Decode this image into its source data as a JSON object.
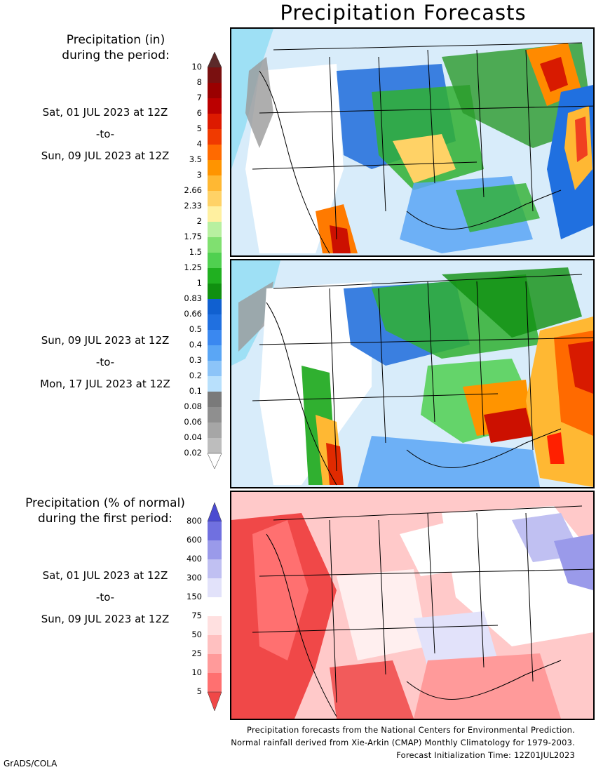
{
  "title": "Precipitation Forecasts",
  "precip_legend": {
    "heading_line1": "Precipitation (in)",
    "heading_line2": "during the period:",
    "levels": [
      "10",
      "8",
      "7",
      "6",
      "5",
      "4",
      "3.5",
      "3",
      "2.66",
      "2.33",
      "2",
      "1.75",
      "1.5",
      "1.25",
      "1",
      "0.83",
      "0.66",
      "0.5",
      "0.4",
      "0.3",
      "0.2",
      "0.1",
      "0.08",
      "0.06",
      "0.04",
      "0.02"
    ],
    "colors": [
      "#5c2a2a",
      "#7a1010",
      "#9a0000",
      "#bb0000",
      "#dd1a00",
      "#f03a00",
      "#ff6a00",
      "#ff9400",
      "#ffb833",
      "#ffd266",
      "#fff0a0",
      "#b8f0a0",
      "#80e070",
      "#50d050",
      "#20b020",
      "#109010",
      "#1060d0",
      "#2070e0",
      "#3a88f0",
      "#5aa6f5",
      "#8cc4f8",
      "#b8e0fc",
      "#7a7a7a",
      "#8f8f8f",
      "#a6a6a6",
      "#bdbdbd",
      "#ffffff"
    ]
  },
  "periods": [
    {
      "start": "Sat, 01 JUL 2023 at 12Z",
      "sep": "-to-",
      "end": "Sun, 09 JUL 2023 at 12Z"
    },
    {
      "start": "Sun, 09 JUL 2023 at 12Z",
      "sep": "-to-",
      "end": "Mon, 17 JUL 2023 at 12Z"
    }
  ],
  "percent_legend": {
    "heading_line1": "Precipitation (% of normal)",
    "heading_line2": "during the first period:",
    "levels": [
      "800",
      "600",
      "400",
      "300",
      "150",
      "75",
      "50",
      "25",
      "10",
      "5"
    ],
    "colors": [
      "#4a4ad0",
      "#7070e0",
      "#9a9aea",
      "#c0c0f2",
      "#e2e2fa",
      "#ffffff",
      "#ffe0e0",
      "#ffc0c0",
      "#ff9a9a",
      "#ff7070",
      "#f04848"
    ]
  },
  "percent_period": {
    "start": "Sat, 01 JUL 2023 at 12Z",
    "sep": "-to-",
    "end": "Sun, 09 JUL 2023 at 12Z"
  },
  "footer": {
    "line1": "Precipitation forecasts from the National Centers for Environmental Prediction.",
    "line2": "Normal rainfall derived from Xie-Arkin (CMAP) Monthly Climatology for 1979-2003.",
    "line3": "Forecast Initialization Time: 12Z01JUL2023"
  },
  "credit": "GrADS/COLA"
}
